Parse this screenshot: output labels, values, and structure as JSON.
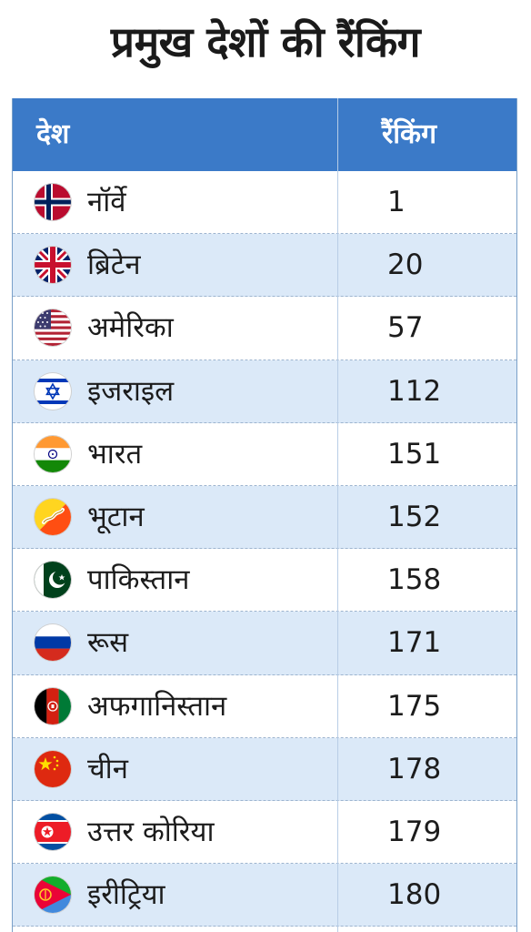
{
  "title": "प्रमुख देशों की रैंकिंग",
  "table": {
    "headers": {
      "country": "देश",
      "rank": "रैंकिंग"
    },
    "header_color": "#3b7ac8",
    "alt_row_color": "#dbe9f8",
    "rows": [
      {
        "country": "नॉर्वे",
        "rank": "1",
        "flag_icon": "norway-flag-icon"
      },
      {
        "country": "ब्रिटेन",
        "rank": "20",
        "flag_icon": "uk-flag-icon"
      },
      {
        "country": "अमेरिका",
        "rank": "57",
        "flag_icon": "usa-flag-icon"
      },
      {
        "country": "इजराइल",
        "rank": "112",
        "flag_icon": "israel-flag-icon"
      },
      {
        "country": "भारत",
        "rank": "151",
        "flag_icon": "india-flag-icon"
      },
      {
        "country": "भूटान",
        "rank": "152",
        "flag_icon": "bhutan-flag-icon"
      },
      {
        "country": "पाकिस्तान",
        "rank": "158",
        "flag_icon": "pakistan-flag-icon"
      },
      {
        "country": "रूस",
        "rank": "171",
        "flag_icon": "russia-flag-icon"
      },
      {
        "country": "अफगानिस्तान",
        "rank": "175",
        "flag_icon": "afghanistan-flag-icon"
      },
      {
        "country": "चीन",
        "rank": "178",
        "flag_icon": "china-flag-icon"
      },
      {
        "country": "उत्तर कोरिया",
        "rank": "179",
        "flag_icon": "north-korea-flag-icon"
      },
      {
        "country": "इरीट्रिया",
        "rank": "180",
        "flag_icon": "eritrea-flag-icon"
      }
    ]
  }
}
